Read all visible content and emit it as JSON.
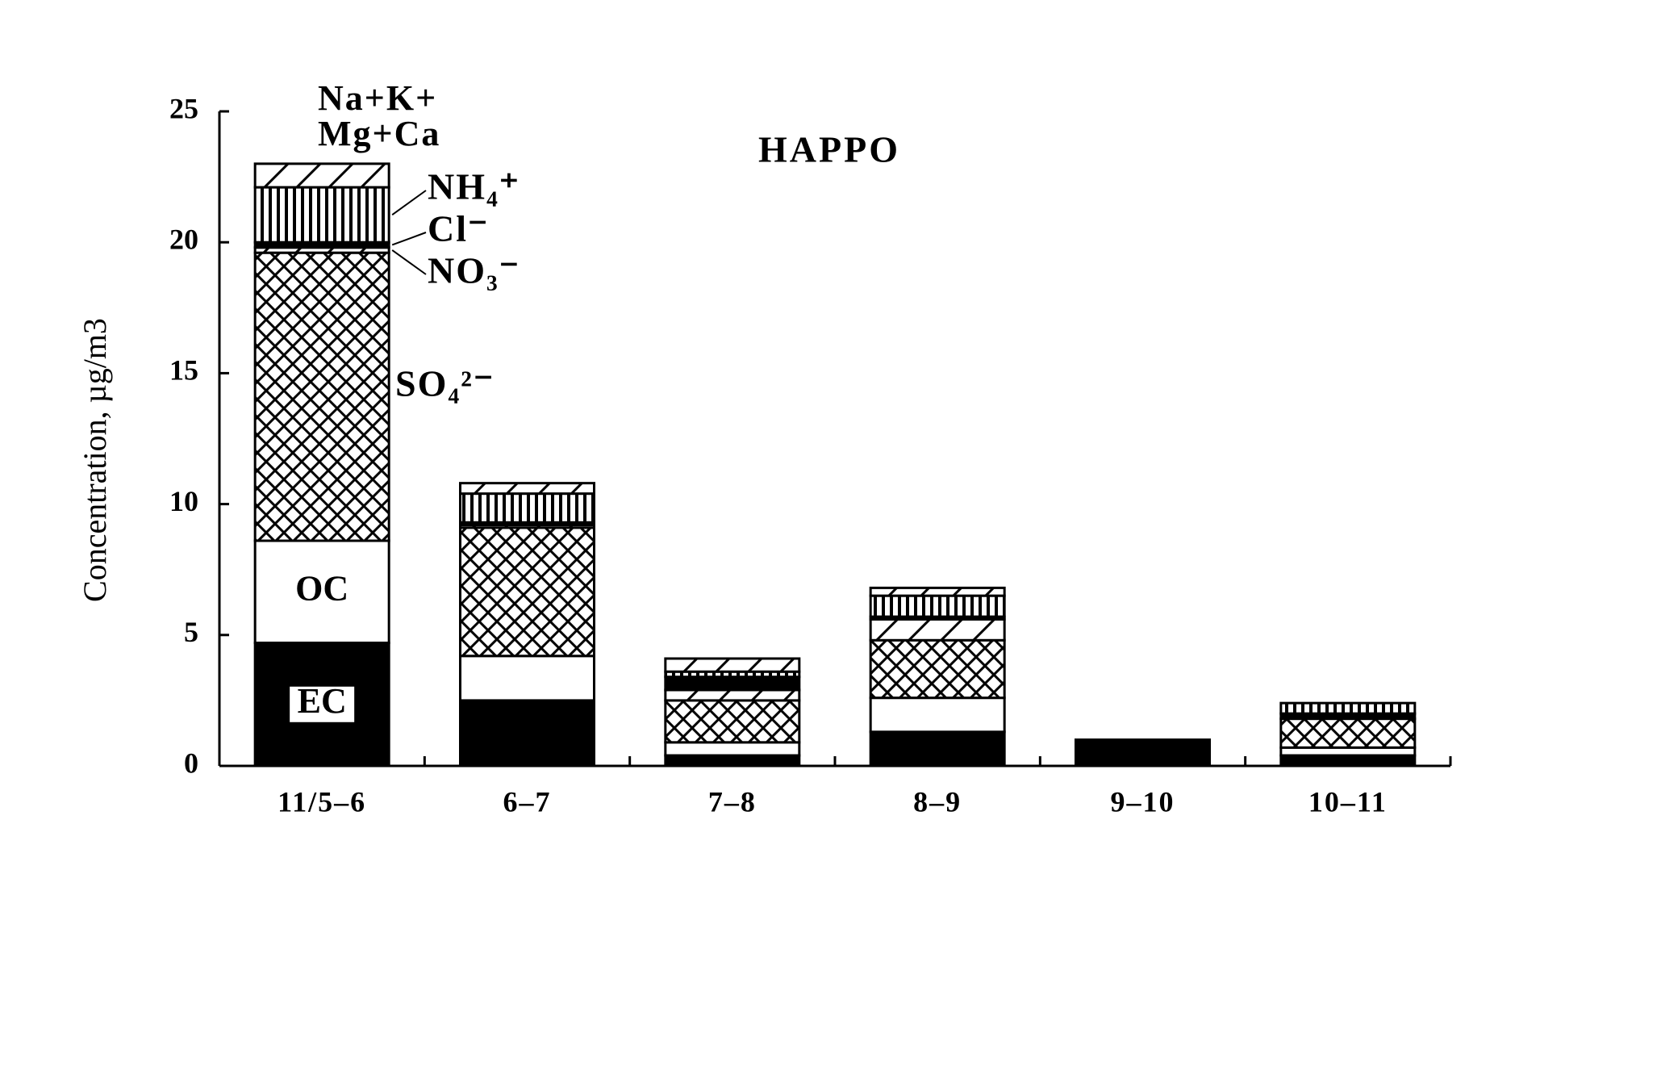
{
  "chart_data": {
    "type": "stacked-bar",
    "title": "HAPPO",
    "y_label": "Concentration, µg/m3",
    "categories": [
      "11/5–6",
      "6–7",
      "7–8",
      "8–9",
      "9–10",
      "10–11"
    ],
    "series": [
      {
        "name": "EC",
        "color": "#000000",
        "pattern": "solid",
        "values": [
          4.7,
          2.5,
          0.4,
          1.3,
          1.0,
          0.4
        ]
      },
      {
        "name": "OC",
        "color": "#ffffff",
        "pattern": "solid",
        "values": [
          3.9,
          1.7,
          0.5,
          1.3,
          0,
          0.3
        ]
      },
      {
        "name": "SO₄²⁻",
        "color": "#000000",
        "pattern": "crosshatch",
        "values": [
          11.0,
          4.9,
          1.6,
          2.2,
          0,
          1.1
        ]
      },
      {
        "name": "NO₃⁻",
        "color": "#000000",
        "pattern": "diagonal",
        "values": [
          0.2,
          0.1,
          0.4,
          0.8,
          0,
          0
        ]
      },
      {
        "name": "Cl⁻",
        "color": "#000000",
        "pattern": "solid",
        "values": [
          0.2,
          0.1,
          0.5,
          0.1,
          0,
          0.2
        ]
      },
      {
        "name": "NH₄⁺",
        "color": "#000000",
        "pattern": "vertical",
        "values": [
          2.1,
          1.1,
          0.2,
          0.8,
          0,
          0.4
        ]
      },
      {
        "name": "Na+K+ Mg+Ca",
        "color": "#000000",
        "pattern": "diagonal",
        "values": [
          0.9,
          0.4,
          0.5,
          0.3,
          0,
          0
        ]
      }
    ],
    "ylim": [
      0,
      25
    ],
    "yticks": [
      0,
      5,
      10,
      15,
      20,
      25
    ]
  }
}
